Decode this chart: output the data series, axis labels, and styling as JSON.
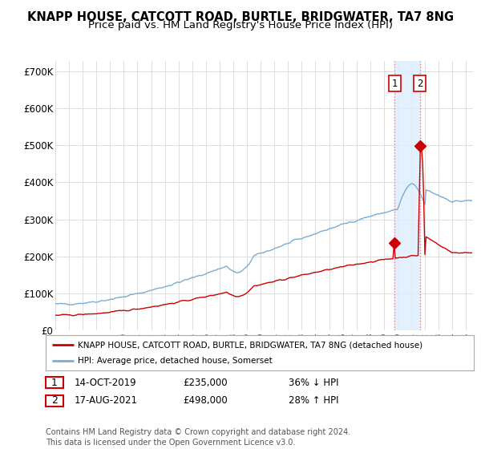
{
  "title": "KNAPP HOUSE, CATCOTT ROAD, BURTLE, BRIDGWATER, TA7 8NG",
  "subtitle": "Price paid vs. HM Land Registry's House Price Index (HPI)",
  "title_fontsize": 10.5,
  "subtitle_fontsize": 9.5,
  "hpi_color": "#7aadd4",
  "red_color": "#cc0000",
  "vline_color": "#e88080",
  "shade_color": "#ddeeff",
  "ylim": [
    0,
    730000
  ],
  "xlim": [
    1995.0,
    2025.5
  ],
  "sale1_x": 2019.79,
  "sale1_y": 235000,
  "sale2_x": 2021.63,
  "sale2_y": 498000,
  "ytick_values": [
    0,
    100000,
    200000,
    300000,
    400000,
    500000,
    600000,
    700000
  ],
  "ytick_labels": [
    "£0",
    "£100K",
    "£200K",
    "£300K",
    "£400K",
    "£500K",
    "£600K",
    "£700K"
  ],
  "xtick_values": [
    1995,
    1996,
    1997,
    1998,
    1999,
    2000,
    2001,
    2002,
    2003,
    2004,
    2005,
    2006,
    2007,
    2008,
    2009,
    2010,
    2011,
    2012,
    2013,
    2014,
    2015,
    2016,
    2017,
    2018,
    2019,
    2020,
    2021,
    2022,
    2023,
    2024,
    2025
  ],
  "legend_label_red": "KNAPP HOUSE, CATCOTT ROAD, BURTLE, BRIDGWATER, TA7 8NG (detached house)",
  "legend_label_hpi": "HPI: Average price, detached house, Somerset",
  "table_rows": [
    {
      "num": "1",
      "date": "14-OCT-2019",
      "price": "£235,000",
      "change": "36% ↓ HPI"
    },
    {
      "num": "2",
      "date": "17-AUG-2021",
      "price": "£498,000",
      "change": "28% ↑ HPI"
    }
  ],
  "footnote": "Contains HM Land Registry data © Crown copyright and database right 2024.\nThis data is licensed under the Open Government Licence v3.0.",
  "bg_color": "#ffffff",
  "grid_color": "#dddddd"
}
